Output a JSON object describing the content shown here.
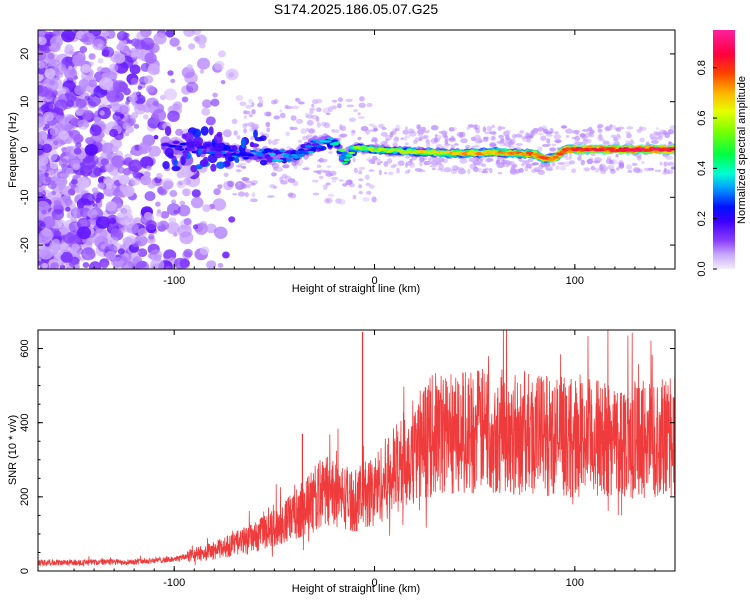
{
  "title": "S174.2025.186.05.07.G25",
  "chart_data": [
    {
      "type": "heatmap",
      "xlabel": "Height of straight line (km)",
      "ylabel": "Frequency (Hz)",
      "xlim": [
        -168,
        150
      ],
      "ylim": [
        -25,
        25
      ],
      "x_ticks": [
        -100,
        0,
        100
      ],
      "y_ticks": [
        -20,
        -10,
        0,
        10,
        20
      ],
      "colorbar": {
        "label": "Normalized spectral amplitude",
        "range": [
          0,
          0.95
        ],
        "ticks": [
          "0.0",
          "0.2",
          "0.4",
          "0.6",
          "0.8"
        ],
        "colormap": [
          "#e9d9ff",
          "#a060ff",
          "#6010ff",
          "#0000ff",
          "#00c8ff",
          "#00ff7f",
          "#a0ff00",
          "#ffd000",
          "#ff6000",
          "#ff1030",
          "#ff20a0"
        ]
      },
      "ridge": [
        {
          "x": -100,
          "y": 0.5,
          "amp": 0.25
        },
        {
          "x": -80,
          "y": 0.0,
          "amp": 0.3
        },
        {
          "x": -60,
          "y": -1.0,
          "amp": 0.35
        },
        {
          "x": -40,
          "y": -1.5,
          "amp": 0.38
        },
        {
          "x": -30,
          "y": 1.0,
          "amp": 0.4
        },
        {
          "x": -20,
          "y": 1.5,
          "amp": 0.45
        },
        {
          "x": -15,
          "y": -2.0,
          "amp": 0.5
        },
        {
          "x": -10,
          "y": 0.5,
          "amp": 0.55
        },
        {
          "x": 0,
          "y": 0.0,
          "amp": 0.6
        },
        {
          "x": 20,
          "y": -0.5,
          "amp": 0.65
        },
        {
          "x": 40,
          "y": -0.8,
          "amp": 0.7
        },
        {
          "x": 60,
          "y": -0.6,
          "amp": 0.75
        },
        {
          "x": 80,
          "y": -1.0,
          "amp": 0.78
        },
        {
          "x": 85,
          "y": -2.0,
          "amp": 0.82
        },
        {
          "x": 90,
          "y": -1.8,
          "amp": 0.8
        },
        {
          "x": 95,
          "y": 0.0,
          "amp": 0.85
        },
        {
          "x": 120,
          "y": 0.0,
          "amp": 0.9
        },
        {
          "x": 150,
          "y": 0.0,
          "amp": 0.92
        }
      ]
    },
    {
      "type": "line",
      "xlabel": "Height of straight line (km)",
      "ylabel": "SNR (10 * v/v)",
      "xlim": [
        -168,
        150
      ],
      "ylim": [
        0,
        650
      ],
      "x_ticks": [
        -100,
        0,
        100
      ],
      "y_ticks": [
        0,
        200,
        400,
        600
      ],
      "color": "#ee3030",
      "trend": [
        {
          "x": -168,
          "y": 22
        },
        {
          "x": -120,
          "y": 25
        },
        {
          "x": -100,
          "y": 32
        },
        {
          "x": -80,
          "y": 55
        },
        {
          "x": -60,
          "y": 90
        },
        {
          "x": -45,
          "y": 130
        },
        {
          "x": -35,
          "y": 170
        },
        {
          "x": -25,
          "y": 220
        },
        {
          "x": -10,
          "y": 190
        },
        {
          "x": 0,
          "y": 220
        },
        {
          "x": 10,
          "y": 270
        },
        {
          "x": 20,
          "y": 330
        },
        {
          "x": 30,
          "y": 370
        },
        {
          "x": 50,
          "y": 380
        },
        {
          "x": 80,
          "y": 370
        },
        {
          "x": 100,
          "y": 360
        },
        {
          "x": 130,
          "y": 355
        },
        {
          "x": 150,
          "y": 360
        }
      ],
      "spikes": [
        {
          "x": -6,
          "y": 645
        },
        {
          "x": -36,
          "y": 370
        }
      ]
    }
  ]
}
